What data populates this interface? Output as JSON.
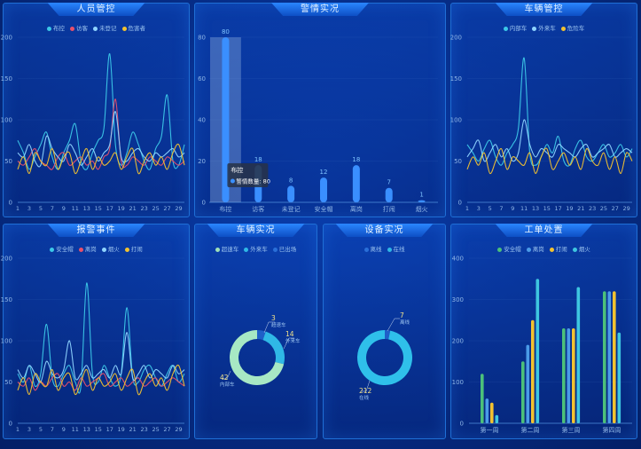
{
  "panels": {
    "personnel": {
      "title": "人员管控"
    },
    "alarm": {
      "title": "警情实况"
    },
    "vehicle_control": {
      "title": "车辆管控"
    },
    "alarm_events": {
      "title": "报警事件"
    },
    "vehicle_live": {
      "title": "车辆实况"
    },
    "device_live": {
      "title": "设备实况"
    },
    "work_orders": {
      "title": "工单处置"
    }
  },
  "tooltip": {
    "title": "布控",
    "label": "警情数量",
    "value": "80"
  },
  "chart_data": [
    {
      "id": "personnel",
      "type": "line",
      "x": [
        1,
        2,
        3,
        4,
        5,
        6,
        7,
        8,
        9,
        10,
        11,
        12,
        13,
        14,
        15,
        16,
        17,
        18,
        19,
        20,
        21,
        22,
        23,
        24,
        25,
        26,
        27,
        28,
        29,
        30
      ],
      "xticks": [
        1,
        3,
        5,
        7,
        9,
        11,
        13,
        15,
        17,
        19,
        21,
        23,
        25,
        27,
        29
      ],
      "ylim": [
        0,
        200
      ],
      "yticks": [
        0,
        50,
        100,
        150,
        200
      ],
      "series": [
        {
          "name": "布控",
          "color": "#3cc8e8",
          "values": [
            75,
            60,
            40,
            55,
            70,
            85,
            55,
            40,
            60,
            75,
            95,
            50,
            40,
            60,
            75,
            90,
            180,
            70,
            45,
            60,
            85,
            70,
            50,
            40,
            65,
            80,
            130,
            50,
            45,
            70
          ]
        },
        {
          "name": "访客",
          "color": "#e8506a",
          "values": [
            50,
            45,
            55,
            65,
            50,
            45,
            40,
            55,
            60,
            45,
            50,
            55,
            45,
            50,
            40,
            55,
            65,
            125,
            50,
            45,
            55,
            50,
            45,
            55,
            50,
            45,
            55,
            50,
            45,
            50
          ]
        },
        {
          "name": "未登记",
          "color": "#8fd4ff",
          "values": [
            60,
            55,
            70,
            50,
            45,
            80,
            65,
            55,
            50,
            70,
            60,
            45,
            55,
            65,
            50,
            60,
            70,
            110,
            55,
            50,
            60,
            65,
            55,
            50,
            60,
            55,
            60,
            65,
            55,
            60
          ]
        },
        {
          "name": "危害者",
          "color": "#f2c230",
          "values": [
            40,
            55,
            35,
            60,
            50,
            45,
            65,
            40,
            55,
            60,
            35,
            50,
            65,
            40,
            55,
            45,
            50,
            60,
            40,
            55,
            65,
            35,
            50,
            60,
            45,
            55,
            40,
            60,
            70,
            45
          ]
        }
      ]
    },
    {
      "id": "alarm",
      "type": "bar",
      "categories": [
        "布控",
        "访客",
        "未登记",
        "安全帽",
        "离岗",
        "打闹",
        "烟火"
      ],
      "values": [
        80,
        18,
        8,
        12,
        18,
        7,
        1
      ],
      "ylim": [
        0,
        80
      ],
      "yticks": [
        0,
        20,
        40,
        60,
        80
      ]
    },
    {
      "id": "vehicle_control",
      "type": "line",
      "x": [
        1,
        2,
        3,
        4,
        5,
        6,
        7,
        8,
        9,
        10,
        11,
        12,
        13,
        14,
        15,
        16,
        17,
        18,
        19,
        20,
        21,
        22,
        23,
        24,
        25,
        26,
        27,
        28,
        29,
        30
      ],
      "xticks": [
        1,
        3,
        5,
        7,
        9,
        11,
        13,
        15,
        17,
        19,
        21,
        23,
        25,
        27,
        29
      ],
      "ylim": [
        0,
        200
      ],
      "yticks": [
        0,
        50,
        100,
        150,
        200
      ],
      "series": [
        {
          "name": "内部车",
          "color": "#3cc8e8",
          "values": [
            70,
            60,
            50,
            65,
            75,
            55,
            45,
            60,
            70,
            90,
            175,
            60,
            45,
            55,
            70,
            60,
            80,
            50,
            45,
            65,
            75,
            55,
            50,
            60,
            70,
            55,
            60,
            70,
            55,
            65
          ]
        },
        {
          "name": "外来车",
          "color": "#8fd4ff",
          "values": [
            55,
            65,
            75,
            50,
            60,
            70,
            55,
            65,
            50,
            60,
            100,
            70,
            55,
            65,
            60,
            55,
            70,
            65,
            60,
            55,
            65,
            70,
            55,
            60,
            65,
            70,
            55,
            60,
            65,
            60
          ]
        },
        {
          "name": "危险车",
          "color": "#f2c230",
          "values": [
            40,
            55,
            45,
            60,
            35,
            50,
            65,
            40,
            55,
            50,
            45,
            60,
            35,
            55,
            65,
            40,
            50,
            60,
            45,
            55,
            40,
            65,
            50,
            45,
            60,
            40,
            55,
            35,
            60,
            50
          ]
        }
      ]
    },
    {
      "id": "alarm_events",
      "type": "line",
      "x": [
        1,
        2,
        3,
        4,
        5,
        6,
        7,
        8,
        9,
        10,
        11,
        12,
        13,
        14,
        15,
        16,
        17,
        18,
        19,
        20,
        21,
        22,
        23,
        24,
        25,
        26,
        27,
        28,
        29,
        30
      ],
      "xticks": [
        1,
        3,
        5,
        7,
        9,
        11,
        13,
        15,
        17,
        19,
        21,
        23,
        25,
        27,
        29
      ],
      "ylim": [
        0,
        200
      ],
      "yticks": [
        0,
        50,
        100,
        150,
        200
      ],
      "series": [
        {
          "name": "安全帽",
          "color": "#3cc8e8",
          "values": [
            60,
            50,
            70,
            45,
            60,
            120,
            55,
            45,
            60,
            70,
            50,
            45,
            170,
            60,
            50,
            70,
            55,
            45,
            60,
            140,
            55,
            50,
            65,
            70,
            55,
            45,
            60,
            70,
            50,
            60
          ]
        },
        {
          "name": "离岗",
          "color": "#e8506a",
          "values": [
            50,
            45,
            55,
            40,
            50,
            45,
            55,
            60,
            45,
            50,
            40,
            55,
            45,
            50,
            55,
            60,
            45,
            50,
            55,
            45,
            50,
            55,
            45,
            50,
            55,
            45,
            50,
            55,
            50,
            45
          ]
        },
        {
          "name": "烟火",
          "color": "#8fd4ff",
          "values": [
            65,
            55,
            70,
            60,
            50,
            75,
            60,
            55,
            65,
            100,
            55,
            60,
            70,
            55,
            60,
            65,
            55,
            70,
            60,
            110,
            55,
            60,
            70,
            55,
            65,
            60,
            55,
            70,
            60,
            65
          ]
        },
        {
          "name": "打闹",
          "color": "#f2c230",
          "values": [
            40,
            55,
            35,
            60,
            50,
            45,
            65,
            40,
            55,
            60,
            35,
            50,
            65,
            40,
            55,
            45,
            50,
            60,
            40,
            55,
            65,
            35,
            50,
            60,
            45,
            55,
            40,
            60,
            70,
            45
          ]
        }
      ]
    },
    {
      "id": "vehicle_live",
      "type": "pie",
      "legend": [
        "超速车",
        "外来车",
        "已出场"
      ],
      "colors": [
        "#9fe0b8",
        "#2fb8e6",
        "#2a6fd8"
      ],
      "values": [
        42,
        14,
        3
      ],
      "labels": [
        "内部车",
        "外来车",
        "超速车"
      ]
    },
    {
      "id": "device_live",
      "type": "pie",
      "legend": [
        "离线",
        "在线"
      ],
      "colors": [
        "#2a6fd8",
        "#2fb8e6"
      ],
      "values": [
        7,
        212
      ],
      "labels": [
        "离线",
        "在线"
      ]
    },
    {
      "id": "work_orders",
      "type": "bar",
      "categories": [
        "第一周",
        "第二周",
        "第三周",
        "第四周"
      ],
      "ylim": [
        0,
        400
      ],
      "yticks": [
        0,
        100,
        200,
        300,
        400
      ],
      "series": [
        {
          "name": "安全帽",
          "color": "#4cc07a",
          "values": [
            120,
            150,
            230,
            320
          ]
        },
        {
          "name": "离岗",
          "color": "#4a9be8",
          "values": [
            60,
            190,
            230,
            320
          ]
        },
        {
          "name": "打闹",
          "color": "#f2c230",
          "values": [
            50,
            250,
            230,
            320
          ]
        },
        {
          "name": "烟火",
          "color": "#3ec6e0",
          "values": [
            20,
            350,
            330,
            220
          ]
        }
      ]
    }
  ]
}
